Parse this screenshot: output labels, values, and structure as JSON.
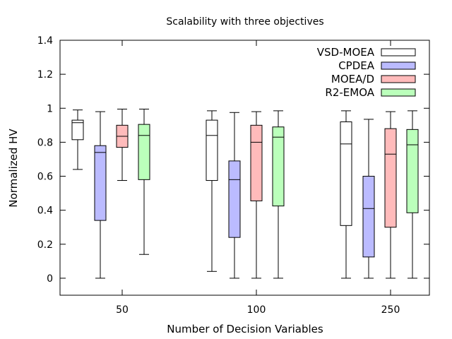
{
  "chart_data": {
    "type": "box",
    "title": "Scalability with three objectives",
    "xlabel": "Number of Decision Variables",
    "ylabel": "Normalized HV",
    "ylim": [
      -0.1,
      1.4
    ],
    "yticks": [
      "0",
      "0.2",
      "0.4",
      "0.6",
      "0.8",
      "1",
      "1.2",
      "1.4"
    ],
    "ytick_values": [
      0,
      0.2,
      0.4,
      0.6,
      0.8,
      1.0,
      1.2,
      1.4
    ],
    "categories": [
      "50",
      "100",
      "250"
    ],
    "grid": false,
    "legend_position": "top-right",
    "series": [
      {
        "name": "VSD-MOEA",
        "color": "#ffffff",
        "boxes": [
          {
            "min": 0.64,
            "q1": 0.815,
            "median": 0.915,
            "q3": 0.93,
            "max": 0.99
          },
          {
            "min": 0.04,
            "q1": 0.575,
            "median": 0.84,
            "q3": 0.93,
            "max": 0.985
          },
          {
            "min": 0.0,
            "q1": 0.31,
            "median": 0.79,
            "q3": 0.92,
            "max": 0.985
          }
        ]
      },
      {
        "name": "CPDEA",
        "color": "#bbbbff",
        "boxes": [
          {
            "min": 0.0,
            "q1": 0.34,
            "median": 0.74,
            "q3": 0.78,
            "max": 0.98
          },
          {
            "min": 0.0,
            "q1": 0.24,
            "median": 0.58,
            "q3": 0.69,
            "max": 0.975
          },
          {
            "min": 0.0,
            "q1": 0.125,
            "median": 0.41,
            "q3": 0.6,
            "max": 0.935
          }
        ]
      },
      {
        "name": "MOEA/D",
        "color": "#ffbbbb",
        "boxes": [
          {
            "min": 0.575,
            "q1": 0.77,
            "median": 0.835,
            "q3": 0.9,
            "max": 0.995
          },
          {
            "min": 0.0,
            "q1": 0.455,
            "median": 0.8,
            "q3": 0.9,
            "max": 0.98
          },
          {
            "min": 0.0,
            "q1": 0.3,
            "median": 0.73,
            "q3": 0.88,
            "max": 0.98
          }
        ]
      },
      {
        "name": "R2-EMOA",
        "color": "#bbffbb",
        "boxes": [
          {
            "min": 0.14,
            "q1": 0.58,
            "median": 0.84,
            "q3": 0.905,
            "max": 0.995
          },
          {
            "min": 0.0,
            "q1": 0.425,
            "median": 0.83,
            "q3": 0.89,
            "max": 0.985
          },
          {
            "min": 0.0,
            "q1": 0.385,
            "median": 0.785,
            "q3": 0.875,
            "max": 0.985
          }
        ]
      }
    ]
  }
}
